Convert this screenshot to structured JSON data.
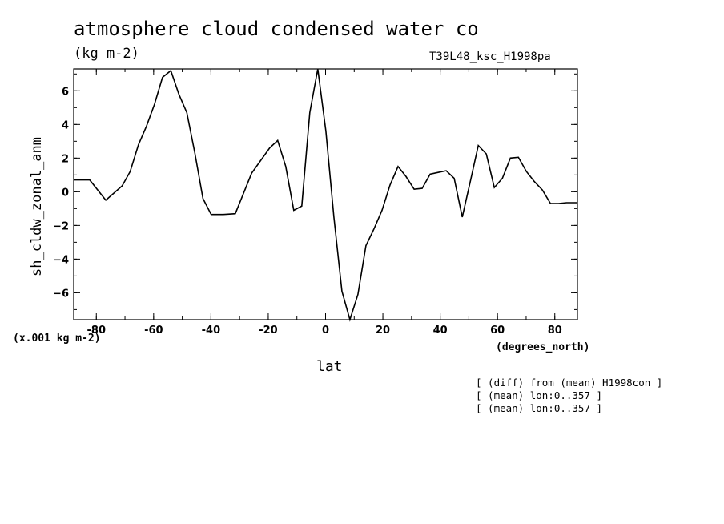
{
  "chart_data": {
    "type": "line",
    "title": "atmosphere cloud condensed water co",
    "units": "(kg m-2)",
    "run_id": "T39L48_ksc_H1998pa",
    "ylabel": "sh_cldw_zonal_anm",
    "xlabel": "lat",
    "x_units": "(degrees_north)",
    "scale_note": "(x.001 kg m-2)",
    "xlim": [
      -87.9,
      87.9
    ],
    "ylim": [
      -7.6,
      7.3
    ],
    "x_ticks": [
      -80,
      -60,
      -40,
      -20,
      0,
      20,
      40,
      60,
      80
    ],
    "y_ticks": [
      6,
      4,
      2,
      0,
      -2,
      -4,
      -6
    ],
    "x_tick_labels": [
      "-80",
      "-60",
      "-40",
      "-20",
      "0",
      "20",
      "40",
      "60",
      "80"
    ],
    "y_tick_labels": [
      "6",
      "4",
      "2",
      "0",
      "−2",
      "−4",
      "−6"
    ],
    "grid": false,
    "series": [
      {
        "x": [
          -87.9,
          -82.3,
          -79.5,
          -76.7,
          -71.0,
          -68.2,
          -65.3,
          -62.5,
          -59.7,
          -56.9,
          -54.0,
          -51.2,
          -48.4,
          -45.6,
          -42.8,
          -39.9,
          -35.7,
          -31.5,
          -25.8,
          -19.5,
          -16.7,
          -13.9,
          -11.1,
          -8.3,
          -5.5,
          -2.7,
          0.1,
          2.9,
          5.7,
          8.5,
          11.3,
          14.1,
          16.9,
          19.7,
          22.5,
          25.3,
          28.1,
          30.9,
          33.7,
          36.5,
          39.3,
          42.1,
          44.9,
          47.7,
          50.5,
          53.3,
          56.1,
          58.9,
          61.7,
          64.5,
          67.3,
          70.1,
          72.9,
          75.7,
          78.5,
          81.3,
          84.1,
          87.9
        ],
        "values": [
          0.7,
          0.7,
          0.1,
          -0.5,
          0.35,
          1.2,
          2.8,
          3.9,
          5.2,
          6.8,
          7.2,
          5.8,
          4.7,
          2.3,
          -0.4,
          -1.35,
          -1.35,
          -1.3,
          1.1,
          2.6,
          3.05,
          1.5,
          -1.1,
          -0.85,
          4.7,
          7.3,
          3.6,
          -1.5,
          -5.9,
          -7.6,
          -6.1,
          -3.2,
          -2.2,
          -1.1,
          0.4,
          1.5,
          0.9,
          0.15,
          0.2,
          1.05,
          1.15,
          1.25,
          0.8,
          -1.5,
          0.6,
          2.75,
          2.25,
          0.25,
          0.8,
          2.0,
          2.05,
          1.2,
          0.6,
          0.1,
          -0.7,
          -0.7,
          -0.65,
          -0.65
        ]
      }
    ]
  },
  "footnotes": [
    "[ (diff) from (mean) H1998con ]",
    "[ (mean) lon:0..357 ]",
    "[ (mean) lon:0..357 ]"
  ]
}
